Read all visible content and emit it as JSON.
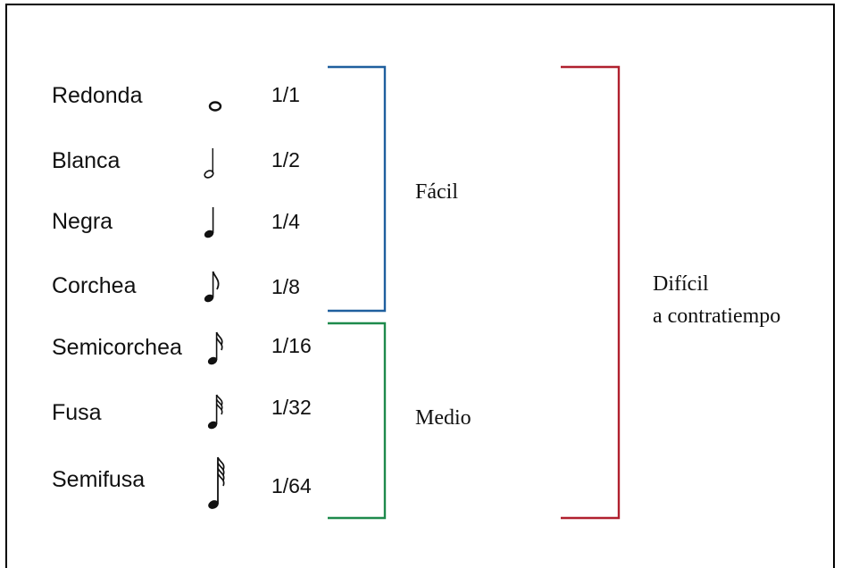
{
  "notes": [
    {
      "name": "Redonda",
      "fraction": "1/1",
      "icon": "whole-note-icon"
    },
    {
      "name": "Blanca",
      "fraction": "1/2",
      "icon": "half-note-icon"
    },
    {
      "name": "Negra",
      "fraction": "1/4",
      "icon": "quarter-note-icon"
    },
    {
      "name": "Corchea",
      "fraction": "1/8",
      "icon": "eighth-note-icon"
    },
    {
      "name": "Semicorchea",
      "fraction": "1/16",
      "icon": "sixteenth-note-icon"
    },
    {
      "name": "Fusa",
      "fraction": "1/32",
      "icon": "thirty-second-note-icon"
    },
    {
      "name": "Semifusa",
      "fraction": "1/64",
      "icon": "sixty-fourth-note-icon"
    }
  ],
  "groups": {
    "easy": {
      "label": "Fácil",
      "color": "#1f5f9e"
    },
    "medium": {
      "label": "Medio",
      "color": "#1e8a4c"
    },
    "hard": {
      "line1": "Difícil",
      "line2": "a contratiempo",
      "color": "#b0202e"
    }
  }
}
